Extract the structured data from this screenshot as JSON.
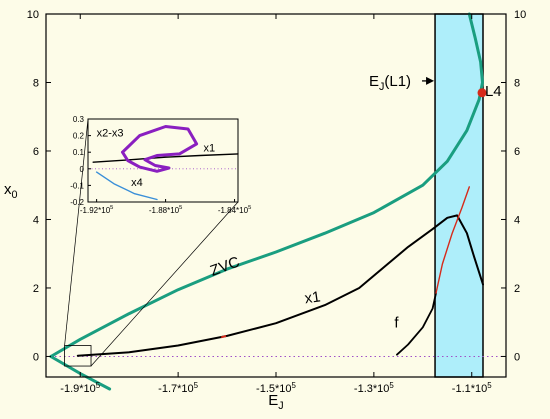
{
  "colors": {
    "background": "#fdfce8",
    "zvc": "#1a9e80",
    "x1": "#000000",
    "branch": "#d62a1a",
    "band": "#aeeefa",
    "l4": "#d62a1a",
    "loop": "#8a1fc0",
    "blue": "#3a8fd8",
    "dotted": "#a050c8"
  },
  "chart_data": {
    "type": "line",
    "xlabel": "E",
    "xlabel_sub": "J",
    "ylabel": "x",
    "ylabel_sub": "0",
    "xlim": [
      -197000,
      -103000
    ],
    "ylim": [
      -0.6,
      10
    ],
    "x_ticks": [
      {
        "value": -190000,
        "label": "-1.9*10",
        "exp": "5"
      },
      {
        "value": -170000,
        "label": "-1.7*10",
        "exp": "5"
      },
      {
        "value": -150000,
        "label": "-1.5*10",
        "exp": "5"
      },
      {
        "value": -130000,
        "label": "-1.3*10",
        "exp": "5"
      },
      {
        "value": -110000,
        "label": "-1.1*10",
        "exp": "5"
      }
    ],
    "y_ticks": [
      0,
      2,
      4,
      6,
      8,
      10
    ],
    "band": {
      "x0": -117500,
      "x1": -107700
    },
    "annotations": [
      {
        "text": "ZVC",
        "x": -163000,
        "y": 2.35,
        "rotate": -20
      },
      {
        "text": "x1",
        "x": -144000,
        "y": 1.55,
        "rotate": -8
      },
      {
        "text": "f",
        "x": -125800,
        "y": 0.85,
        "rotate": 0
      },
      {
        "text": "L4",
        "x": -107300,
        "y": 7.6,
        "rotate": 0
      },
      {
        "text": "E",
        "sub": "J",
        "tail": "(L1)",
        "x": -126700,
        "y": 7.9,
        "arrow_to": -117700
      }
    ],
    "l4_point": {
      "x": -107900,
      "y": 7.7
    },
    "series": [
      {
        "key": "zvc_upper",
        "color": "#1a9e80",
        "width": 3,
        "points": [
          [
            -196000,
            0
          ],
          [
            -190000,
            0.5
          ],
          [
            -180000,
            1.25
          ],
          [
            -170000,
            1.95
          ],
          [
            -160000,
            2.55
          ],
          [
            -150000,
            3.05
          ],
          [
            -140000,
            3.6
          ],
          [
            -130000,
            4.2
          ],
          [
            -120000,
            5.0
          ],
          [
            -115000,
            5.7
          ],
          [
            -111000,
            6.6
          ],
          [
            -108500,
            7.5
          ],
          [
            -107800,
            8.0
          ],
          [
            -108200,
            8.6
          ],
          [
            -109300,
            9.3
          ],
          [
            -110500,
            10.0
          ]
        ]
      },
      {
        "key": "zvc_lower",
        "color": "#1a9e80",
        "width": 3,
        "points": [
          [
            -196000,
            0
          ],
          [
            -190000,
            -0.5
          ],
          [
            -184000,
            -0.95
          ]
        ]
      },
      {
        "key": "x1",
        "color": "#000000",
        "width": 2,
        "points": [
          [
            -190500,
            0.02
          ],
          [
            -180000,
            0.12
          ],
          [
            -170000,
            0.32
          ],
          [
            -160000,
            0.6
          ],
          [
            -150000,
            0.97
          ],
          [
            -140000,
            1.5
          ],
          [
            -133000,
            2.0
          ],
          [
            -128000,
            2.6
          ],
          [
            -123000,
            3.2
          ],
          [
            -118000,
            3.72
          ],
          [
            -115000,
            4.05
          ],
          [
            -113000,
            4.12
          ],
          [
            -111000,
            3.6
          ],
          [
            -109500,
            2.9
          ],
          [
            -107700,
            2.1
          ]
        ]
      },
      {
        "key": "f",
        "color": "#000000",
        "width": 1.8,
        "points": [
          [
            -125300,
            0.05
          ],
          [
            -123000,
            0.35
          ],
          [
            -120000,
            0.85
          ],
          [
            -118000,
            1.4
          ],
          [
            -117300,
            1.85
          ]
        ]
      },
      {
        "key": "red_branch",
        "color": "#d62a1a",
        "width": 1.4,
        "points": [
          [
            -117300,
            1.85
          ],
          [
            -116000,
            2.7
          ],
          [
            -114000,
            3.6
          ],
          [
            -112000,
            4.35
          ],
          [
            -110500,
            4.95
          ]
        ]
      }
    ],
    "inset": {
      "xlim": [
        -192500,
        -183800
      ],
      "ylim": [
        -0.2,
        0.3
      ],
      "x_ticks": [
        {
          "value": -192000,
          "label": "-1.92*10",
          "exp": "5"
        },
        {
          "value": -188000,
          "label": "-1.88*10",
          "exp": "5"
        },
        {
          "value": -184000,
          "label": "-1.84*10",
          "exp": "5"
        }
      ],
      "y_ticks": [
        {
          "value": 0.3,
          "label": "0.3"
        },
        {
          "value": 0.2,
          "label": "0.2"
        },
        {
          "value": 0.1,
          "label": "0.1"
        },
        {
          "value": 0,
          "label": "0"
        },
        {
          "value": -0.1,
          "label": "-0.1"
        },
        {
          "value": -0.2,
          "label": "-0.2"
        }
      ],
      "labels": [
        {
          "text": "x2-x3",
          "x": -192000,
          "y": 0.195
        },
        {
          "text": "x1",
          "x": -185800,
          "y": 0.105
        },
        {
          "text": "x4",
          "x": -190000,
          "y": -0.105
        }
      ],
      "series": [
        {
          "key": "inset_x1",
          "color": "#000000",
          "width": 1.4,
          "points": [
            [
              -192200,
              0.04
            ],
            [
              -190000,
              0.055
            ],
            [
              -188000,
              0.07
            ],
            [
              -186000,
              0.08
            ],
            [
              -183800,
              0.09
            ]
          ]
        },
        {
          "key": "inset_loop",
          "color": "#8a1fc0",
          "width": 3,
          "points": [
            [
              -190500,
              0.1
            ],
            [
              -189500,
              0.2
            ],
            [
              -188000,
              0.255
            ],
            [
              -186700,
              0.24
            ],
            [
              -186200,
              0.15
            ],
            [
              -187200,
              0.09
            ],
            [
              -188500,
              0.08
            ],
            [
              -189200,
              0.055
            ],
            [
              -188600,
              0.02
            ],
            [
              -187800,
              0.005
            ],
            [
              -188500,
              -0.015
            ],
            [
              -189500,
              0.01
            ],
            [
              -190200,
              0.05
            ],
            [
              -190500,
              0.1
            ]
          ]
        },
        {
          "key": "inset_x4",
          "color": "#3a8fd8",
          "width": 1.4,
          "points": [
            [
              -192000,
              -0.02
            ],
            [
              -191000,
              -0.09
            ],
            [
              -189800,
              -0.15
            ],
            [
              -188500,
              -0.185
            ]
          ]
        }
      ]
    }
  }
}
